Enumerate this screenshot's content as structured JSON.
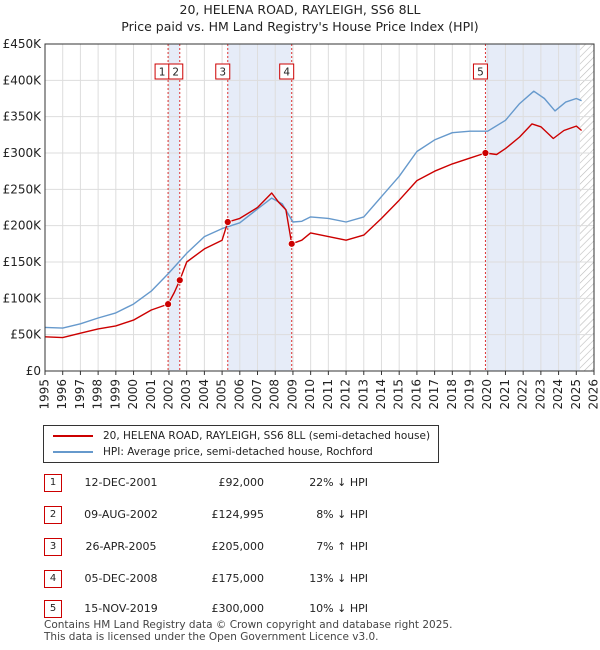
{
  "title_line1": "20, HELENA ROAD, RAYLEIGH, SS6 8LL",
  "title_line2": "Price paid vs. HM Land Registry's House Price Index (HPI)",
  "chart_data": {
    "type": "line",
    "title": "Price paid vs. HM Land Registry's House Price Index (HPI)",
    "x_range": [
      1995,
      2026
    ],
    "y_range": [
      0,
      450000
    ],
    "y_ticks": [
      0,
      50000,
      100000,
      150000,
      200000,
      250000,
      300000,
      350000,
      400000,
      450000
    ],
    "y_tick_labels": [
      "£0",
      "£50K",
      "£100K",
      "£150K",
      "£200K",
      "£250K",
      "£300K",
      "£350K",
      "£400K",
      "£450K"
    ],
    "x_ticks": [
      "1995",
      "1996",
      "1997",
      "1998",
      "1999",
      "2000",
      "2001",
      "2002",
      "2003",
      "2004",
      "2005",
      "2006",
      "2007",
      "2008",
      "2009",
      "2010",
      "2011",
      "2012",
      "2013",
      "2014",
      "2015",
      "2016",
      "2017",
      "2018",
      "2019",
      "2020",
      "2021",
      "2022",
      "2023",
      "2024",
      "2025",
      "2026"
    ],
    "shaded_spans": [
      [
        2002.0,
        2002.6
      ],
      [
        2005.3,
        2008.9
      ],
      [
        2019.9,
        2025.2
      ]
    ],
    "hatched_from": 2025.2,
    "series": [
      {
        "name": "20, HELENA ROAD, RAYLEIGH, SS6 8LL (semi-detached house)",
        "color": "#cc0000",
        "points": [
          [
            1995,
            47000
          ],
          [
            1996,
            46000
          ],
          [
            1997,
            52000
          ],
          [
            1998,
            58000
          ],
          [
            1999,
            62000
          ],
          [
            2000,
            70000
          ],
          [
            2001,
            84000
          ],
          [
            2001.95,
            92000
          ],
          [
            2002.3,
            108000
          ],
          [
            2002.61,
            124995
          ],
          [
            2003,
            150000
          ],
          [
            2004,
            168000
          ],
          [
            2005,
            180000
          ],
          [
            2005.32,
            205000
          ],
          [
            2006,
            210000
          ],
          [
            2007,
            225000
          ],
          [
            2007.8,
            245000
          ],
          [
            2008.2,
            232000
          ],
          [
            2008.6,
            222000
          ],
          [
            2008.93,
            175000
          ],
          [
            2009.5,
            180000
          ],
          [
            2010,
            190000
          ],
          [
            2011,
            185000
          ],
          [
            2012,
            180000
          ],
          [
            2013,
            187000
          ],
          [
            2014,
            210000
          ],
          [
            2015,
            235000
          ],
          [
            2016,
            262000
          ],
          [
            2017,
            275000
          ],
          [
            2018,
            285000
          ],
          [
            2019,
            293000
          ],
          [
            2019.87,
            300000
          ],
          [
            2020.5,
            298000
          ],
          [
            2021,
            306000
          ],
          [
            2021.8,
            322000
          ],
          [
            2022.5,
            340000
          ],
          [
            2023,
            336000
          ],
          [
            2023.7,
            320000
          ],
          [
            2024.3,
            331000
          ],
          [
            2025,
            337000
          ],
          [
            2025.3,
            331000
          ]
        ]
      },
      {
        "name": "HPI: Average price, semi-detached house, Rochford",
        "color": "#6699cc",
        "points": [
          [
            1995,
            60000
          ],
          [
            1996,
            59000
          ],
          [
            1997,
            65000
          ],
          [
            1998,
            73000
          ],
          [
            1999,
            80000
          ],
          [
            2000,
            92000
          ],
          [
            2001,
            110000
          ],
          [
            2002,
            135000
          ],
          [
            2003,
            162000
          ],
          [
            2004,
            185000
          ],
          [
            2005,
            196000
          ],
          [
            2006,
            204000
          ],
          [
            2007,
            223000
          ],
          [
            2007.8,
            238000
          ],
          [
            2008.4,
            230000
          ],
          [
            2009,
            205000
          ],
          [
            2009.5,
            206000
          ],
          [
            2010,
            212000
          ],
          [
            2011,
            210000
          ],
          [
            2012,
            205000
          ],
          [
            2013,
            212000
          ],
          [
            2014,
            240000
          ],
          [
            2015,
            268000
          ],
          [
            2016,
            302000
          ],
          [
            2017,
            318000
          ],
          [
            2018,
            328000
          ],
          [
            2019,
            330000
          ],
          [
            2020,
            330000
          ],
          [
            2021,
            345000
          ],
          [
            2021.8,
            368000
          ],
          [
            2022.6,
            385000
          ],
          [
            2023.2,
            375000
          ],
          [
            2023.8,
            358000
          ],
          [
            2024.4,
            370000
          ],
          [
            2025,
            375000
          ],
          [
            2025.3,
            372000
          ]
        ]
      }
    ],
    "transactions": [
      {
        "id": "1",
        "x": 2001.95,
        "price": 92000
      },
      {
        "id": "2",
        "x": 2002.61,
        "price": 124995
      },
      {
        "id": "3",
        "x": 2005.32,
        "price": 205000
      },
      {
        "id": "4",
        "x": 2008.93,
        "price": 175000
      },
      {
        "id": "5",
        "x": 2019.87,
        "price": 300000
      }
    ]
  },
  "legend": {
    "property_label": "20, HELENA ROAD, RAYLEIGH, SS6 8LL (semi-detached house)",
    "hpi_label": "HPI: Average price, semi-detached house, Rochford"
  },
  "table": [
    {
      "id": "1",
      "date": "12-DEC-2001",
      "price": "£92,000",
      "hpi": "22% ↓ HPI"
    },
    {
      "id": "2",
      "date": "09-AUG-2002",
      "price": "£124,995",
      "hpi": "8% ↓ HPI"
    },
    {
      "id": "3",
      "date": "26-APR-2005",
      "price": "£205,000",
      "hpi": "7% ↑ HPI"
    },
    {
      "id": "4",
      "date": "05-DEC-2008",
      "price": "£175,000",
      "hpi": "13% ↓ HPI"
    },
    {
      "id": "5",
      "date": "15-NOV-2019",
      "price": "£300,000",
      "hpi": "10% ↓ HPI"
    }
  ],
  "footer_line1": "Contains HM Land Registry data © Crown copyright and database right 2025.",
  "footer_line2": "This data is licensed under the Open Government Licence v3.0."
}
